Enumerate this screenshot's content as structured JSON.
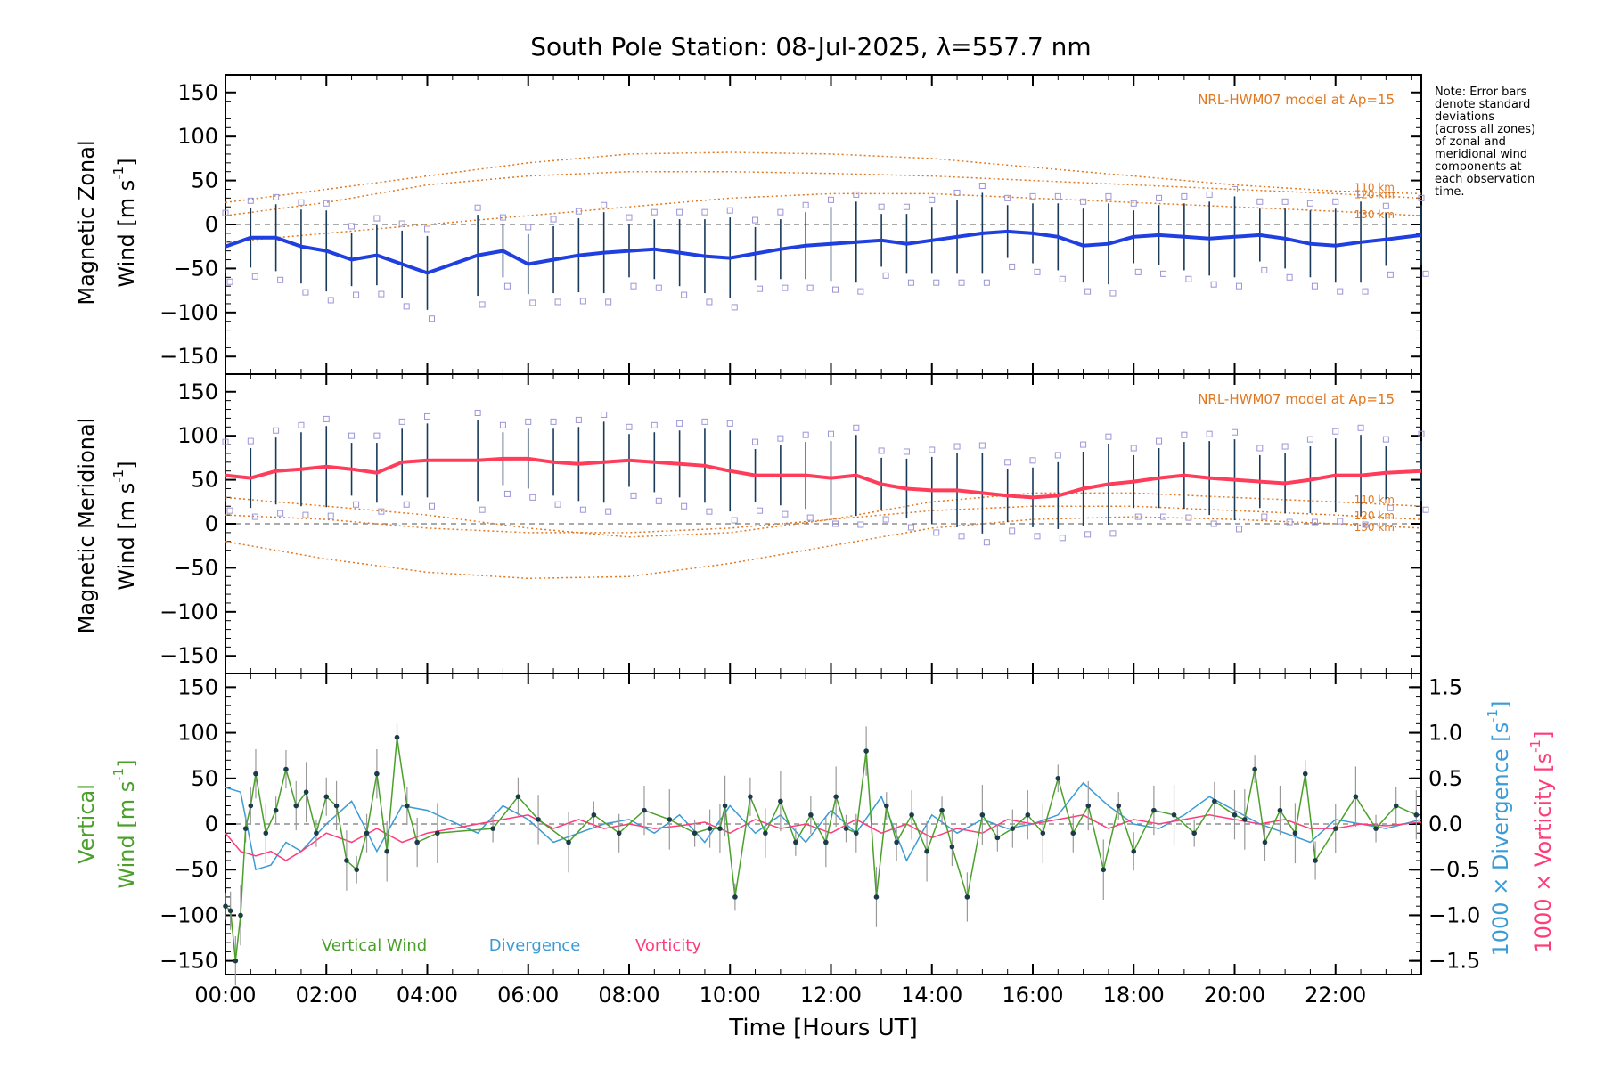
{
  "chart_data": {
    "type": "line",
    "title": "South Pole Station: 08-Jul-2025, λ=557.7 nm",
    "note": [
      "Note: Error bars",
      "denote standard",
      "deviations",
      "(across all zones)",
      "of zonal and",
      "meridional wind",
      "components at",
      "each observation",
      "time."
    ],
    "xlabel": "Time [Hours UT]",
    "xlim": [
      0,
      23.7
    ],
    "xticks": [
      0,
      2,
      4,
      6,
      8,
      10,
      12,
      14,
      16,
      18,
      20,
      22
    ],
    "xtick_labels": [
      "00:00",
      "02:00",
      "04:00",
      "06:00",
      "08:00",
      "10:00",
      "12:00",
      "14:00",
      "16:00",
      "18:00",
      "20:00",
      "22:00"
    ],
    "yticks": [
      150,
      100,
      50,
      0,
      -50,
      -100,
      -150
    ],
    "ytick_labels": [
      "150",
      "100",
      "50",
      "0",
      "−50",
      "−100",
      "−150"
    ],
    "panels": [
      {
        "name": "zonal",
        "ylabel_line1": "Magnetic Zonal",
        "ylabel_line2": "Wind [m s",
        "ylabel_sup": "-1",
        "ylabel_end": "]",
        "ylim": [
          -170,
          170
        ],
        "model_label": "NRL-HWM07 model at Ap=15",
        "model_alt_labels": [
          "110 km",
          "120 km",
          "130 km"
        ],
        "series": [
          {
            "name": "Mean zonal wind",
            "color": "#1f3fe0",
            "x": [
              0,
              0.5,
              1,
              1.5,
              2,
              2.5,
              3,
              3.5,
              4,
              5,
              5.5,
              6,
              6.5,
              7,
              7.5,
              8,
              8.5,
              9,
              9.5,
              10,
              10.5,
              11,
              11.5,
              12,
              12.5,
              13,
              13.5,
              14,
              14.5,
              15,
              15.5,
              16,
              16.5,
              17,
              17.5,
              18,
              18.5,
              19,
              19.5,
              20,
              20.5,
              21,
              21.5,
              22,
              22.5,
              23,
              23.7
            ],
            "y": [
              -25,
              -15,
              -15,
              -25,
              -30,
              -40,
              -35,
              -45,
              -55,
              -35,
              -30,
              -45,
              -40,
              -35,
              -32,
              -30,
              -28,
              -32,
              -36,
              -38,
              -33,
              -28,
              -24,
              -22,
              -20,
              -18,
              -22,
              -18,
              -14,
              -10,
              -8,
              -10,
              -14,
              -24,
              -22,
              -14,
              -12,
              -14,
              -16,
              -14,
              -12,
              -16,
              -22,
              -24,
              -20,
              -17,
              -12
            ]
          },
          {
            "name": "HWM07 110 km",
            "color": "#e07820",
            "x": [
              0,
              2,
              4,
              6,
              8,
              10,
              12,
              14,
              16,
              18,
              20,
              22,
              23.7
            ],
            "y": [
              25,
              40,
              55,
              70,
              80,
              82,
              80,
              75,
              65,
              55,
              45,
              38,
              35
            ]
          },
          {
            "name": "HWM07 120 km",
            "color": "#e07820",
            "x": [
              0,
              2,
              4,
              6,
              8,
              10,
              12,
              14,
              16,
              18,
              20,
              22,
              23.7
            ],
            "y": [
              10,
              25,
              45,
              55,
              60,
              60,
              58,
              55,
              50,
              45,
              40,
              35,
              30
            ]
          },
          {
            "name": "HWM07 130 km",
            "color": "#e07820",
            "x": [
              0,
              2,
              4,
              6,
              8,
              10,
              12,
              14,
              16,
              18,
              20,
              22,
              23.7
            ],
            "y": [
              -20,
              -10,
              0,
              10,
              20,
              30,
              35,
              35,
              30,
              25,
              20,
              15,
              10
            ]
          }
        ]
      },
      {
        "name": "meridional",
        "ylabel_line1": "Magnetic Meridional",
        "ylabel_line2": "Wind [m s",
        "ylabel_sup": "-1",
        "ylabel_end": "]",
        "ylim": [
          -170,
          170
        ],
        "model_label": "NRL-HWM07 model at Ap=15",
        "model_alt_labels": [
          "110 km",
          "120 km",
          "130 km"
        ],
        "series": [
          {
            "name": "Mean meridional wind",
            "color": "#ff3c5a",
            "x": [
              0,
              0.5,
              1,
              1.5,
              2,
              2.5,
              3,
              3.5,
              4,
              5,
              5.5,
              6,
              6.5,
              7,
              7.5,
              8,
              8.5,
              9,
              9.5,
              10,
              10.5,
              11,
              11.5,
              12,
              12.5,
              13,
              13.5,
              14,
              14.5,
              15,
              15.5,
              16,
              16.5,
              17,
              17.5,
              18,
              18.5,
              19,
              19.5,
              20,
              20.5,
              21,
              21.5,
              22,
              22.5,
              23,
              23.7
            ],
            "y": [
              55,
              52,
              60,
              62,
              65,
              62,
              58,
              70,
              72,
              72,
              74,
              74,
              70,
              68,
              70,
              72,
              70,
              68,
              66,
              60,
              55,
              55,
              55,
              52,
              55,
              45,
              40,
              38,
              38,
              35,
              32,
              30,
              32,
              40,
              45,
              48,
              52,
              55,
              52,
              50,
              48,
              46,
              50,
              55,
              55,
              58,
              60
            ]
          },
          {
            "name": "HWM07 110 km",
            "color": "#e07820",
            "x": [
              0,
              2,
              4,
              6,
              8,
              10,
              12,
              14,
              16,
              18,
              20,
              22,
              23.7
            ],
            "y": [
              30,
              20,
              10,
              -5,
              -15,
              -10,
              5,
              25,
              35,
              35,
              30,
              25,
              20
            ]
          },
          {
            "name": "HWM07 120 km",
            "color": "#e07820",
            "x": [
              0,
              2,
              4,
              6,
              8,
              10,
              12,
              14,
              16,
              18,
              20,
              22,
              23.7
            ],
            "y": [
              10,
              5,
              -5,
              -10,
              -10,
              -5,
              5,
              15,
              20,
              20,
              15,
              10,
              5
            ]
          },
          {
            "name": "HWM07 130 km",
            "color": "#e07820",
            "x": [
              0,
              2,
              4,
              6,
              8,
              10,
              12,
              14,
              16,
              18,
              20,
              22,
              23.7
            ],
            "y": [
              -20,
              -40,
              -55,
              -62,
              -60,
              -45,
              -25,
              -5,
              5,
              8,
              5,
              0,
              -5
            ]
          }
        ]
      },
      {
        "name": "vertical",
        "ylabel_line1": "Vertical",
        "ylabel_line2": "Wind [m s",
        "ylabel_sup": "-1",
        "ylabel_end": "]",
        "ylim": [
          -165,
          165
        ],
        "y2_ticks": [
          1.5,
          1.0,
          0.5,
          0.0,
          -0.5,
          -1.0,
          -1.5
        ],
        "y2_tick_labels": [
          "1.5",
          "1.0",
          "0.5",
          "0.0",
          "−0.5",
          "−1.0",
          "−1.5"
        ],
        "y2_label_div": "1000 × Divergence [s",
        "y2_label_vort": "1000 × Vorticity [s",
        "legend": [
          "Vertical Wind",
          "Divergence",
          "Vorticity"
        ],
        "series": [
          {
            "name": "Vertical Wind",
            "color": "#4aa02a",
            "x": [
              0,
              0.1,
              0.2,
              0.3,
              0.4,
              0.5,
              0.6,
              0.8,
              1,
              1.2,
              1.4,
              1.6,
              1.8,
              2,
              2.2,
              2.4,
              2.6,
              2.8,
              3,
              3.2,
              3.4,
              3.6,
              3.8,
              4.2,
              5.3,
              5.8,
              6.2,
              6.8,
              7.3,
              7.8,
              8.3,
              8.8,
              9.3,
              9.6,
              9.8,
              9.9,
              10.1,
              10.4,
              10.7,
              11,
              11.3,
              11.6,
              11.9,
              12.1,
              12.3,
              12.5,
              12.7,
              12.9,
              13.1,
              13.3,
              13.6,
              13.9,
              14.2,
              14.4,
              14.7,
              15,
              15.3,
              15.6,
              15.9,
              16.2,
              16.5,
              16.8,
              17.1,
              17.4,
              17.7,
              18,
              18.4,
              18.8,
              19.2,
              19.6,
              20,
              20.2,
              20.4,
              20.6,
              20.9,
              21.2,
              21.4,
              21.6,
              22,
              22.4,
              22.8,
              23.2,
              23.6
            ],
            "y": [
              -90,
              -95,
              -150,
              -100,
              -5,
              20,
              55,
              -10,
              15,
              60,
              20,
              35,
              -10,
              30,
              20,
              -40,
              -50,
              -10,
              55,
              -30,
              95,
              20,
              -20,
              -10,
              -5,
              30,
              5,
              -20,
              10,
              -10,
              15,
              5,
              -10,
              -5,
              -5,
              20,
              -80,
              30,
              -10,
              25,
              -20,
              10,
              -20,
              30,
              -5,
              -10,
              80,
              -80,
              20,
              -20,
              10,
              -30,
              15,
              -25,
              -80,
              10,
              -15,
              -5,
              10,
              -10,
              50,
              -10,
              20,
              -50,
              20,
              -30,
              15,
              10,
              -10,
              25,
              10,
              5,
              60,
              -20,
              15,
              -10,
              55,
              -40,
              -5,
              30,
              -5,
              20,
              10
            ]
          },
          {
            "name": "Divergence",
            "color": "#3a9bd6",
            "x": [
              0,
              0.3,
              0.6,
              0.9,
              1.2,
              1.5,
              2,
              2.5,
              3,
              3.5,
              4,
              5,
              5.5,
              6,
              6.5,
              7,
              7.5,
              8,
              8.5,
              9,
              9.5,
              10,
              10.5,
              11,
              11.5,
              12,
              12.5,
              13,
              13.5,
              14,
              14.5,
              15,
              15.5,
              16,
              16.5,
              17,
              17.5,
              18,
              18.5,
              19,
              19.5,
              20,
              20.5,
              21,
              21.5,
              22,
              22.5,
              23,
              23.7
            ],
            "y": [
              0.4,
              0.35,
              -0.5,
              -0.45,
              -0.2,
              -0.3,
              0.0,
              0.25,
              -0.3,
              0.2,
              0.15,
              -0.1,
              0.2,
              0.05,
              -0.2,
              -0.1,
              0.0,
              0.05,
              -0.1,
              0.1,
              -0.2,
              0.2,
              -0.1,
              0.1,
              -0.2,
              0.15,
              -0.1,
              0.3,
              -0.4,
              0.1,
              -0.1,
              0.05,
              -0.05,
              0.0,
              0.1,
              0.45,
              0.2,
              0.0,
              -0.05,
              0.1,
              0.3,
              0.15,
              0.0,
              -0.1,
              -0.2,
              0.05,
              0.0,
              -0.05,
              0.05
            ]
          },
          {
            "name": "Vorticity",
            "color": "#ff3c7a",
            "x": [
              0,
              0.3,
              0.6,
              0.9,
              1.2,
              1.5,
              2,
              2.5,
              3,
              3.5,
              4,
              5,
              5.5,
              6,
              6.5,
              7,
              7.5,
              8,
              8.5,
              9,
              9.5,
              10,
              10.5,
              11,
              11.5,
              12,
              12.5,
              13,
              13.5,
              14,
              14.5,
              15,
              15.5,
              16,
              16.5,
              17,
              17.5,
              18,
              18.5,
              19,
              19.5,
              20,
              20.5,
              21,
              21.5,
              22,
              22.5,
              23,
              23.7
            ],
            "y": [
              -0.1,
              -0.3,
              -0.35,
              -0.3,
              -0.4,
              -0.3,
              -0.1,
              -0.2,
              -0.05,
              -0.2,
              -0.1,
              0.0,
              0.05,
              0.1,
              -0.05,
              0.05,
              -0.05,
              0.0,
              -0.05,
              -0.02,
              0.02,
              -0.1,
              0.05,
              -0.05,
              0.0,
              -0.1,
              0.05,
              -0.1,
              0.0,
              -0.15,
              -0.05,
              -0.1,
              0.05,
              0.0,
              0.05,
              0.1,
              -0.05,
              0.05,
              0.0,
              0.05,
              0.1,
              0.05,
              0.0,
              0.05,
              -0.05,
              -0.05,
              0.0,
              -0.02,
              0.02
            ]
          }
        ]
      }
    ]
  }
}
